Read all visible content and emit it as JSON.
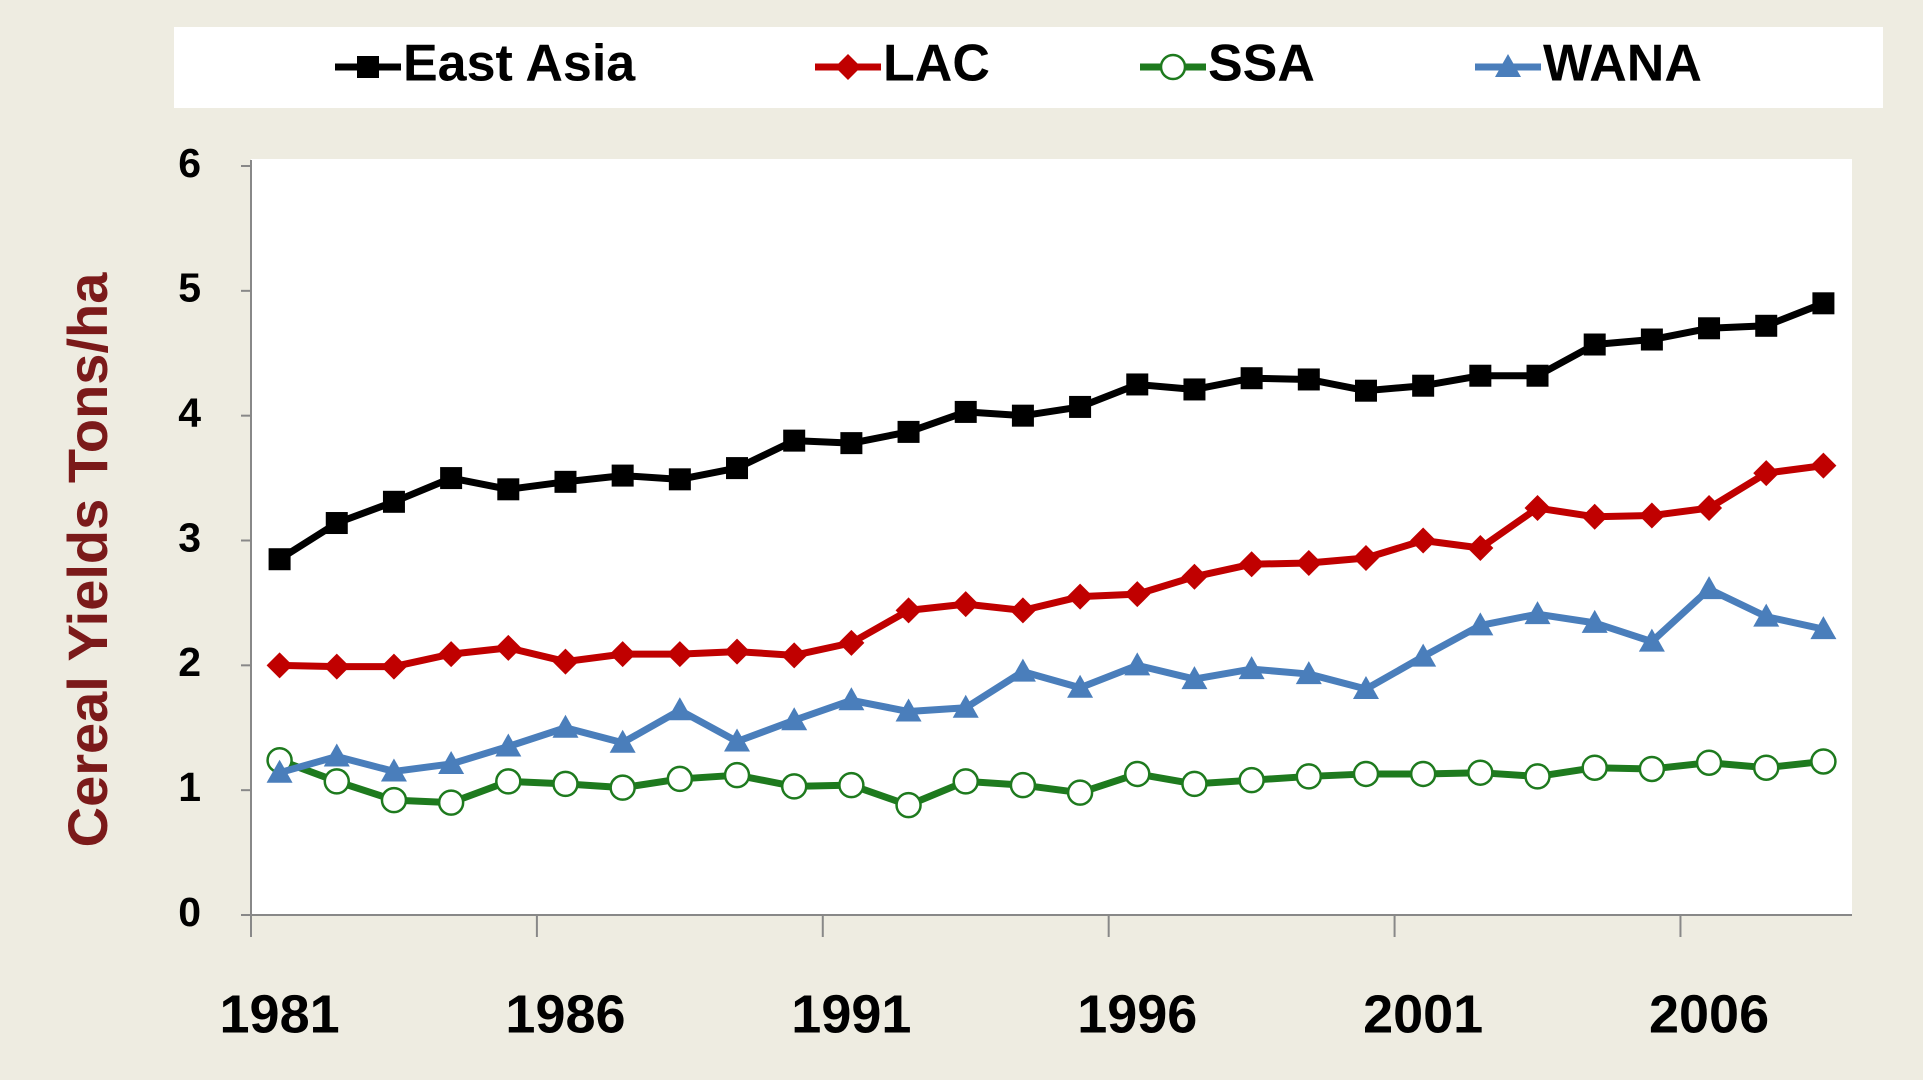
{
  "chart_data": {
    "type": "line",
    "y_label": "Cereal Yields Tons/ha",
    "categories": [
      "1981",
      null,
      null,
      null,
      null,
      "1986",
      null,
      null,
      null,
      null,
      "1991",
      null,
      null,
      null,
      null,
      "1996",
      null,
      null,
      null,
      null,
      "2001",
      null,
      null,
      null,
      null,
      "2006",
      null,
      null
    ],
    "series": [
      {
        "name": "East Asia",
        "color": "#000000",
        "marker": "square",
        "values": [
          2.85,
          3.14,
          3.31,
          3.5,
          3.41,
          3.47,
          3.52,
          3.49,
          3.58,
          3.8,
          3.78,
          3.87,
          4.03,
          4.0,
          4.07,
          4.25,
          4.21,
          4.3,
          4.29,
          4.2,
          4.24,
          4.32,
          4.32,
          4.57,
          4.61,
          4.7,
          4.72,
          4.9
        ]
      },
      {
        "name": "LAC",
        "color": "#c00000",
        "marker": "diamond",
        "values": [
          2.0,
          1.99,
          1.99,
          2.09,
          2.14,
          2.03,
          2.09,
          2.09,
          2.11,
          2.08,
          2.18,
          2.44,
          2.49,
          2.44,
          2.55,
          2.57,
          2.71,
          2.81,
          2.82,
          2.86,
          3.0,
          2.94,
          3.26,
          3.19,
          3.2,
          3.26,
          3.54,
          3.6
        ]
      },
      {
        "name": "SSA",
        "color": "#1e7a1e",
        "marker": "circle",
        "values": [
          1.24,
          1.07,
          0.92,
          0.9,
          1.07,
          1.05,
          1.02,
          1.09,
          1.12,
          1.03,
          1.04,
          0.88,
          1.07,
          1.04,
          0.98,
          1.13,
          1.05,
          1.08,
          1.11,
          1.13,
          1.13,
          1.14,
          1.11,
          1.18,
          1.17,
          1.22,
          1.18,
          1.23
        ]
      },
      {
        "name": "WANA",
        "color": "#4a7ebb",
        "marker": "triangle",
        "values": [
          1.14,
          1.27,
          1.15,
          1.21,
          1.35,
          1.5,
          1.38,
          1.64,
          1.39,
          1.56,
          1.72,
          1.63,
          1.66,
          1.95,
          1.82,
          2.0,
          1.89,
          1.97,
          1.93,
          1.81,
          2.07,
          2.32,
          2.41,
          2.34,
          2.19,
          2.61,
          2.39,
          2.29
        ]
      }
    ],
    "ylim": [
      0,
      6
    ],
    "yticks": [
      0,
      1,
      2,
      3,
      4,
      5,
      6
    ],
    "grid": false,
    "legend": "top"
  }
}
